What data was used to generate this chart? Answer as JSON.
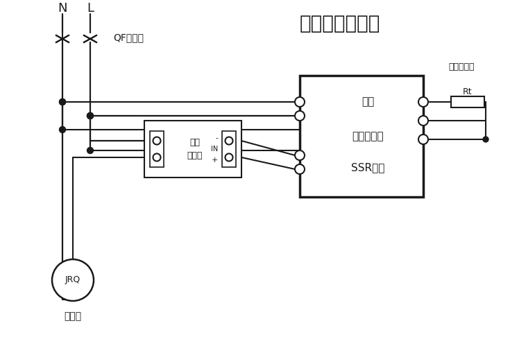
{
  "title": "温度控制原理图",
  "title_fontsize": 20,
  "bg_color": "#ffffff",
  "line_color": "#1a1a1a",
  "N_label": "N",
  "L_label": "L",
  "QF_label": "QF断路器",
  "JRQ_label": "JRQ",
  "heater_label": "加热器",
  "SSR_label1": "固态",
  "SSR_label2": "继电器",
  "TC_box_label1": "供电",
  "TC_box_label2": "温度控制器",
  "TC_box_label3": "SSR输出",
  "sensor_label": "温度传感器",
  "Rt_label": "Rt",
  "minus_label": "-",
  "IN_label": "IN",
  "plus_label": "+"
}
